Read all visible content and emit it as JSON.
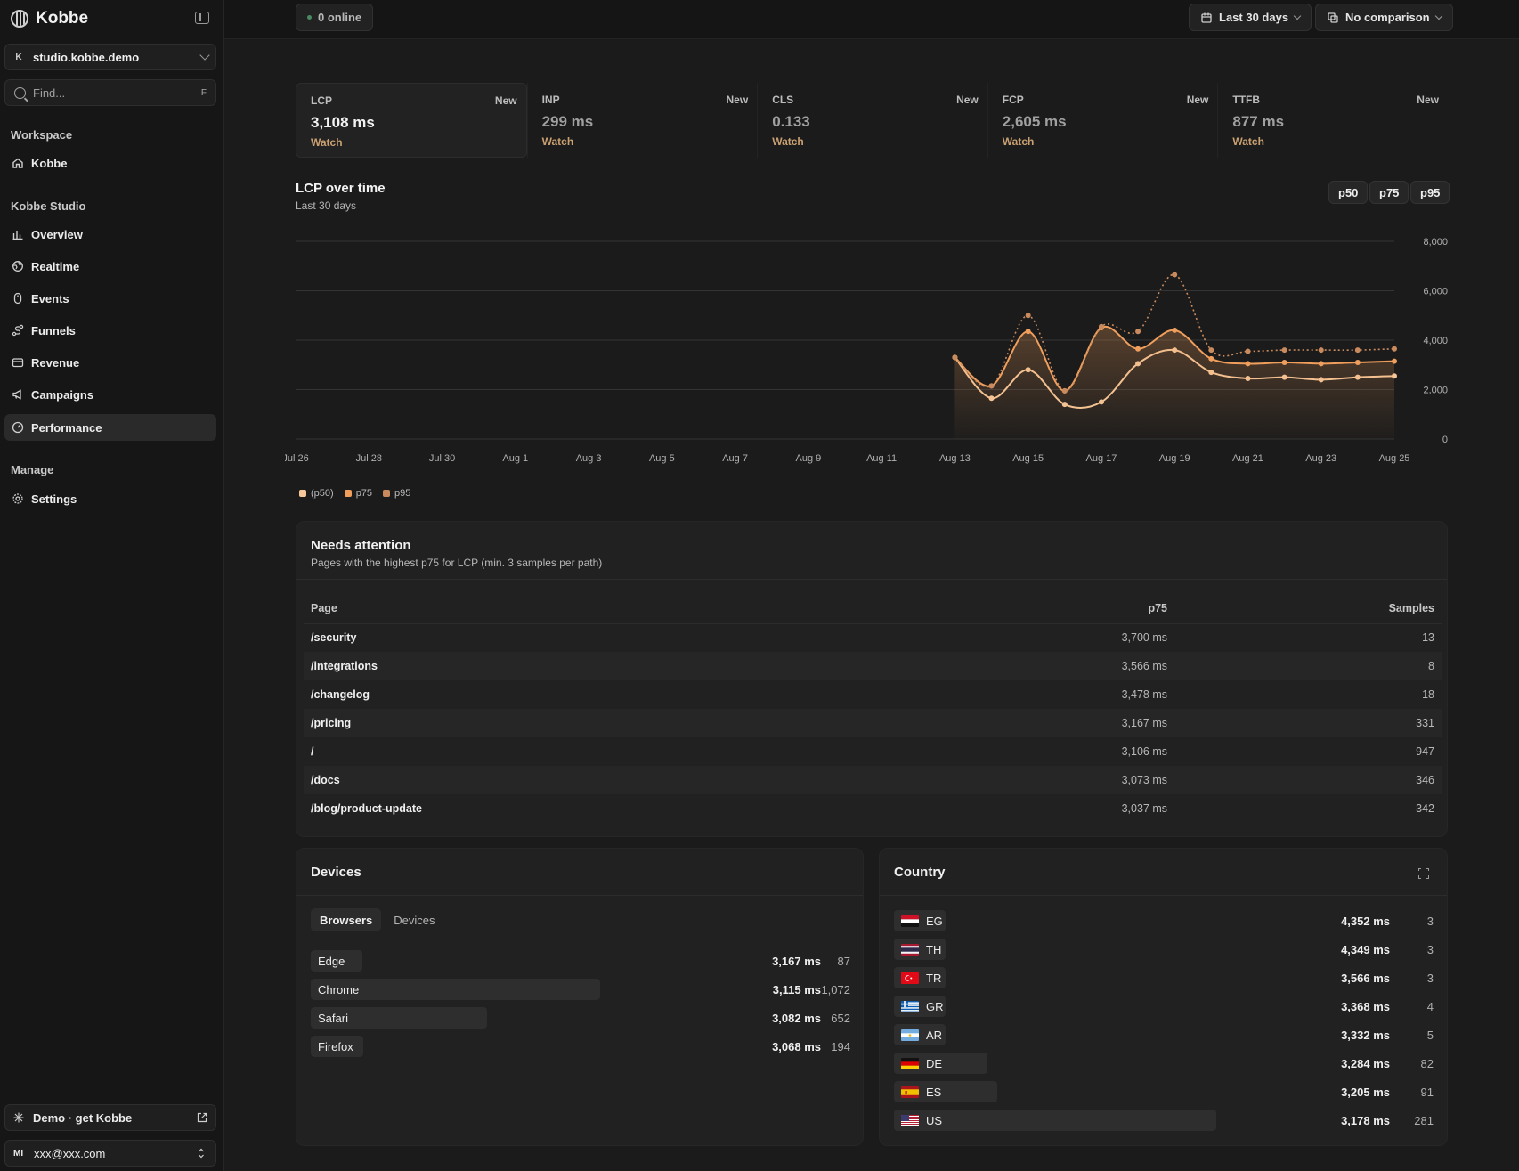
{
  "app": {
    "name": "Kobbe"
  },
  "workspace": {
    "badge": "K",
    "name": "studio.kobbe.demo"
  },
  "search": {
    "placeholder": "Find...",
    "shortcut": "F"
  },
  "nav": {
    "workspace_label": "Workspace",
    "workspace_items": [
      {
        "label": "Kobbe",
        "icon": "home-icon"
      }
    ],
    "studio_label": "Kobbe Studio",
    "studio_items": [
      {
        "label": "Overview",
        "icon": "bar-chart-icon"
      },
      {
        "label": "Realtime",
        "icon": "globe-icon"
      },
      {
        "label": "Events",
        "icon": "pointer-icon"
      },
      {
        "label": "Funnels",
        "icon": "funnel-icon"
      },
      {
        "label": "Revenue",
        "icon": "card-icon"
      },
      {
        "label": "Campaigns",
        "icon": "megaphone-icon"
      },
      {
        "label": "Performance",
        "icon": "gauge-icon"
      }
    ],
    "manage_label": "Manage",
    "manage_items": [
      {
        "label": "Settings",
        "icon": "gear-icon"
      }
    ]
  },
  "footer": {
    "demo_label": "Demo · get Kobbe",
    "user_initials": "MI",
    "user_email": "xxx@xxx.com"
  },
  "topbar": {
    "online": "0 online",
    "range": "Last 30 days",
    "comparison": "No comparison"
  },
  "metrics": [
    {
      "label": "LCP",
      "badge": "New",
      "value": "3,108 ms",
      "status": "Watch"
    },
    {
      "label": "INP",
      "badge": "New",
      "value": "299 ms",
      "status": "Watch"
    },
    {
      "label": "CLS",
      "badge": "New",
      "value": "0.133",
      "status": "Watch"
    },
    {
      "label": "FCP",
      "badge": "New",
      "value": "2,605 ms",
      "status": "Watch"
    },
    {
      "label": "TTFB",
      "badge": "New",
      "value": "877 ms",
      "status": "Watch"
    }
  ],
  "chart_header": {
    "title": "LCP over time",
    "subtitle": "Last 30 days",
    "percentiles": [
      "p50",
      "p75",
      "p95"
    ]
  },
  "chart_data": {
    "type": "line",
    "x": [
      "Jul 26",
      "Jul 27",
      "Jul 28",
      "Jul 29",
      "Jul 30",
      "Jul 31",
      "Aug 1",
      "Aug 2",
      "Aug 3",
      "Aug 4",
      "Aug 5",
      "Aug 6",
      "Aug 7",
      "Aug 8",
      "Aug 9",
      "Aug 10",
      "Aug 11",
      "Aug 12",
      "Aug 13",
      "Aug 14",
      "Aug 15",
      "Aug 16",
      "Aug 17",
      "Aug 18",
      "Aug 19",
      "Aug 20",
      "Aug 21",
      "Aug 22",
      "Aug 23",
      "Aug 24",
      "Aug 25"
    ],
    "xticks": [
      "Jul 26",
      "Jul 28",
      "Jul 30",
      "Aug 1",
      "Aug 3",
      "Aug 5",
      "Aug 7",
      "Aug 9",
      "Aug 11",
      "Aug 13",
      "Aug 15",
      "Aug 17",
      "Aug 19",
      "Aug 21",
      "Aug 23",
      "Aug 25"
    ],
    "yticks": [
      "0",
      "2,000",
      "4,000",
      "6,000",
      "8,000"
    ],
    "ylim": [
      0,
      8000
    ],
    "series": [
      {
        "name": "(p50)",
        "color": "#f5c79a",
        "dashed": false,
        "area": false,
        "values": [
          null,
          null,
          null,
          null,
          null,
          null,
          null,
          null,
          null,
          null,
          null,
          null,
          null,
          null,
          null,
          null,
          null,
          null,
          3300,
          1650,
          2800,
          1400,
          1500,
          3050,
          3600,
          2700,
          2450,
          2500,
          2400,
          2500,
          2550
        ]
      },
      {
        "name": "p75",
        "color": "#ef9e5c",
        "dashed": false,
        "area": true,
        "values": [
          null,
          null,
          null,
          null,
          null,
          null,
          null,
          null,
          null,
          null,
          null,
          null,
          null,
          null,
          null,
          null,
          null,
          null,
          3300,
          2150,
          4350,
          1950,
          4500,
          3650,
          4400,
          3250,
          3050,
          3100,
          3050,
          3100,
          3150
        ]
      },
      {
        "name": "p95",
        "color": "#c98b5e",
        "dashed": true,
        "area": false,
        "values": [
          null,
          null,
          null,
          null,
          null,
          null,
          null,
          null,
          null,
          null,
          null,
          null,
          null,
          null,
          null,
          null,
          null,
          null,
          3300,
          2150,
          5000,
          1950,
          4550,
          4350,
          6650,
          3600,
          3550,
          3600,
          3600,
          3600,
          3650
        ]
      }
    ]
  },
  "attention": {
    "title": "Needs attention",
    "subtitle": "Pages with the highest p75 for LCP (min. 3 samples per path)",
    "headers": {
      "page": "Page",
      "p75": "p75",
      "samples": "Samples"
    },
    "rows": [
      {
        "page": "/security",
        "p75": "3,700 ms",
        "samples": "13"
      },
      {
        "page": "/integrations",
        "p75": "3,566 ms",
        "samples": "8"
      },
      {
        "page": "/changelog",
        "p75": "3,478 ms",
        "samples": "18"
      },
      {
        "page": "/pricing",
        "p75": "3,167 ms",
        "samples": "331"
      },
      {
        "page": "/",
        "p75": "3,106 ms",
        "samples": "947"
      },
      {
        "page": "/docs",
        "p75": "3,073 ms",
        "samples": "346"
      },
      {
        "page": "/blog/product-update",
        "p75": "3,037 ms",
        "samples": "342"
      }
    ]
  },
  "devices": {
    "title": "Devices",
    "tabs": [
      "Browsers",
      "Devices"
    ],
    "rows": [
      {
        "label": "Edge",
        "value": "3,167 ms",
        "count": "87",
        "share": 0.08
      },
      {
        "label": "Chrome",
        "value": "3,115 ms",
        "count": "1,072",
        "share": 1.0
      },
      {
        "label": "Safari",
        "value": "3,082 ms",
        "count": "652",
        "share": 0.61
      },
      {
        "label": "Firefox",
        "value": "3,068 ms",
        "count": "194",
        "share": 0.18
      }
    ]
  },
  "country": {
    "title": "Country",
    "rows": [
      {
        "code": "EG",
        "value": "4,352 ms",
        "count": "3",
        "share": 0.011
      },
      {
        "code": "TH",
        "value": "4,349 ms",
        "count": "3",
        "share": 0.011
      },
      {
        "code": "TR",
        "value": "3,566 ms",
        "count": "3",
        "share": 0.011
      },
      {
        "code": "GR",
        "value": "3,368 ms",
        "count": "4",
        "share": 0.014
      },
      {
        "code": "AR",
        "value": "3,332 ms",
        "count": "5",
        "share": 0.018
      },
      {
        "code": "DE",
        "value": "3,284 ms",
        "count": "82",
        "share": 0.29
      },
      {
        "code": "ES",
        "value": "3,205 ms",
        "count": "91",
        "share": 0.32
      },
      {
        "code": "US",
        "value": "3,178 ms",
        "count": "281",
        "share": 1.0
      }
    ]
  }
}
